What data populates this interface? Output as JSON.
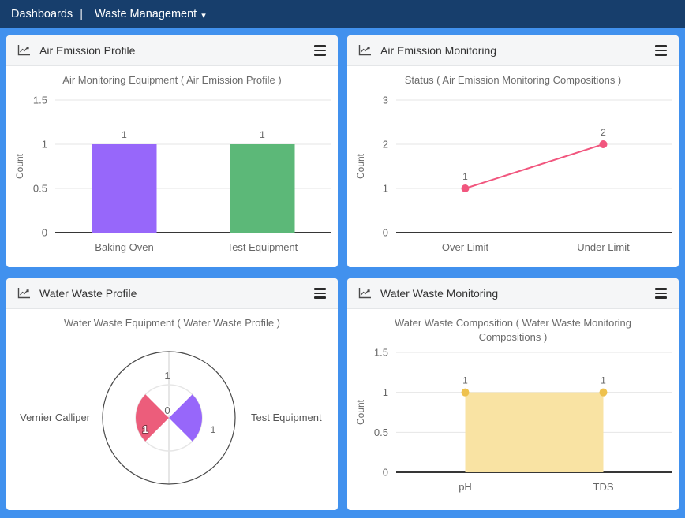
{
  "navbar": {
    "brand": "Dashboards",
    "separator": "|",
    "menu_label": "Waste Management",
    "caret": "▾"
  },
  "colors": {
    "navbar_bg": "#173e6c",
    "page_bg": "#4191ee",
    "panel_header_bg": "#f5f6f7",
    "bar_purple": "#9767fa",
    "bar_green": "#5cb878",
    "line_pink": "#f1567e",
    "area_fill": "#f9e3a3",
    "area_marker": "#eec14d",
    "polar_pink": "#ec5d7b",
    "polar_purple": "#9767fa"
  },
  "panels": [
    {
      "title": "Air Emission Profile"
    },
    {
      "title": "Air Emission Monitoring"
    },
    {
      "title": "Water Waste Profile"
    },
    {
      "title": "Water Waste Monitoring"
    }
  ],
  "chart_data": [
    {
      "type": "bar",
      "title": "Air Monitoring Equipment ( Air Emission Profile )",
      "categories": [
        "Baking Oven",
        "Test Equipment"
      ],
      "values": [
        1,
        1
      ],
      "data_labels": [
        "1",
        "1"
      ],
      "bar_colors": [
        "#9767fa",
        "#5cb878"
      ],
      "xlabel": "",
      "ylabel": "Count",
      "ylim": [
        0,
        1.5
      ],
      "yticks": [
        0,
        0.5,
        1,
        1.5
      ],
      "grid": true,
      "legend": "none"
    },
    {
      "type": "line",
      "title": "Status ( Air Emission Monitoring Compositions )",
      "categories": [
        "Over Limit",
        "Under Limit"
      ],
      "values": [
        1,
        2
      ],
      "data_labels": [
        "1",
        "2"
      ],
      "line_color": "#f1567e",
      "xlabel": "",
      "ylabel": "Count",
      "ylim": [
        0,
        3
      ],
      "yticks": [
        0,
        1,
        2,
        3
      ],
      "grid": true,
      "legend": "none"
    },
    {
      "type": "polar",
      "title": "Water Waste Equipment ( Water Waste Profile )",
      "categories": [
        "Vernier Calliper",
        "Test Equipment"
      ],
      "values": [
        1,
        1
      ],
      "data_labels": [
        "1",
        "1"
      ],
      "slice_colors": [
        "#ec5d7b",
        "#9767fa"
      ],
      "radial_ticks": [
        "0",
        "1"
      ],
      "rmax": 2,
      "legend": "none"
    },
    {
      "type": "area",
      "title": "Water Waste Composition ( Water Waste Monitoring Compositions )",
      "categories": [
        "pH",
        "TDS"
      ],
      "values": [
        1,
        1
      ],
      "data_labels": [
        "1",
        "1"
      ],
      "fill_color": "#f9e3a3",
      "marker_color": "#eec14d",
      "xlabel": "",
      "ylabel": "Count",
      "ylim": [
        0,
        1.5
      ],
      "yticks": [
        0,
        0.5,
        1,
        1.5
      ],
      "grid": true,
      "legend": "none"
    }
  ]
}
